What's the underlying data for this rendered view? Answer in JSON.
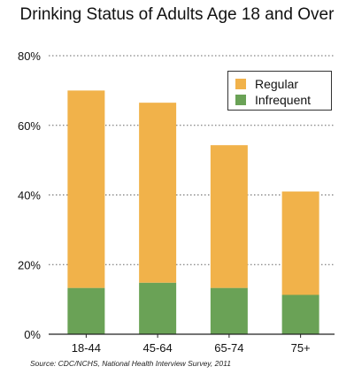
{
  "colors": {
    "regular": "#f1b24a",
    "infrequent": "#6aa256",
    "axis": "#222222",
    "grid": "#666666"
  },
  "chart_data": {
    "type": "bar",
    "stacked": true,
    "title": "Drinking Status of Adults Age 18 and Over",
    "xlabel": "",
    "ylabel": "",
    "categories": [
      "18-44",
      "45-64",
      "65-74",
      "75+"
    ],
    "series": [
      {
        "name": "Infrequent",
        "values": [
          13.3,
          14.8,
          13.3,
          11.3
        ]
      },
      {
        "name": "Regular",
        "values": [
          56.7,
          51.7,
          41.0,
          29.7
        ]
      }
    ],
    "totals": [
      70.0,
      66.5,
      54.3,
      41.0
    ],
    "ylim": [
      0,
      80
    ],
    "y_ticks": [
      0,
      20,
      40,
      60,
      80
    ],
    "y_tick_labels": [
      "0%",
      "20%",
      "40%",
      "60%",
      "80%"
    ],
    "grid": "dotted horizontal",
    "legend_position": "top-right",
    "legend_order": [
      "Regular",
      "Infrequent"
    ],
    "source": "Source: CDC/NCHS, National Health Interview Survey, 2011"
  }
}
